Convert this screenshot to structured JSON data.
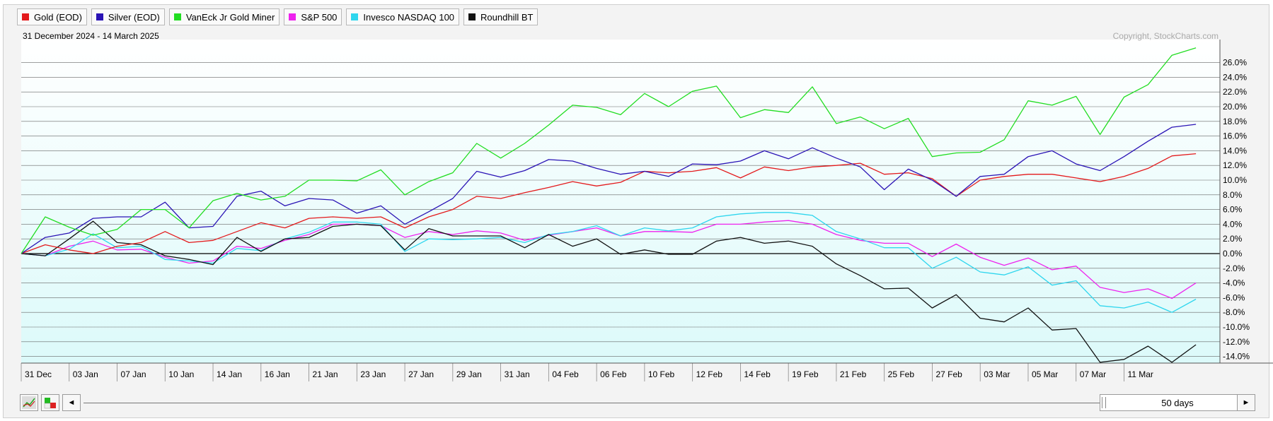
{
  "legend": [
    {
      "label": "Gold (EOD)",
      "color": "#e31a1c"
    },
    {
      "label": "Silver (EOD)",
      "color": "#2a13b5"
    },
    {
      "label": "VanEck Jr Gold Miner",
      "color": "#22dd22"
    },
    {
      "label": "S&P 500",
      "color": "#ee22ee"
    },
    {
      "label": "Invesco NASDAQ 100",
      "color": "#2fd6ee"
    },
    {
      "label": "Roundhill BT",
      "color": "#111111"
    }
  ],
  "date_range": "31 December 2024 - 14 March 2025",
  "copyright": "Copyright, StockCharts.com",
  "controls": {
    "left_arrow": "◄",
    "right_arrow": "►",
    "range": "50 days"
  },
  "chart_data": {
    "type": "line",
    "x": [
      "31 Dec",
      "02 Jan",
      "03 Jan",
      "06 Jan",
      "07 Jan",
      "08 Jan",
      "10 Jan",
      "13 Jan",
      "14 Jan",
      "15 Jan",
      "16 Jan",
      "17 Jan",
      "21 Jan",
      "22 Jan",
      "23 Jan",
      "24 Jan",
      "27 Jan",
      "28 Jan",
      "29 Jan",
      "30 Jan",
      "31 Jan",
      "03 Feb",
      "04 Feb",
      "05 Feb",
      "06 Feb",
      "07 Feb",
      "10 Feb",
      "11 Feb",
      "12 Feb",
      "13 Feb",
      "14 Feb",
      "18 Feb",
      "19 Feb",
      "20 Feb",
      "21 Feb",
      "24 Feb",
      "25 Feb",
      "26 Feb",
      "27 Feb",
      "28 Feb",
      "03 Mar",
      "04 Mar",
      "05 Mar",
      "06 Mar",
      "07 Mar",
      "10 Mar",
      "11 Mar",
      "12 Mar",
      "13 Mar",
      "14 Mar"
    ],
    "xtick_labels": [
      "31 Dec",
      "03 Jan",
      "07 Jan",
      "10 Jan",
      "14 Jan",
      "16 Jan",
      "21 Jan",
      "23 Jan",
      "27 Jan",
      "29 Jan",
      "31 Jan",
      "04 Feb",
      "06 Feb",
      "10 Feb",
      "12 Feb",
      "14 Feb",
      "19 Feb",
      "21 Feb",
      "25 Feb",
      "27 Feb",
      "03 Mar",
      "05 Mar",
      "07 Mar",
      "11 Mar"
    ],
    "y_unit": "%",
    "ylim": [
      -15,
      28
    ],
    "yticks": [
      -14,
      -12,
      -10,
      -8,
      -6,
      -4,
      -2,
      0,
      2,
      4,
      6,
      8,
      10,
      12,
      14,
      16,
      18,
      20,
      22,
      24,
      26
    ],
    "ytick_labels": [
      "-14.0%",
      "-12.0%",
      "-10.0%",
      "-8.0%",
      "-6.0%",
      "-4.0%",
      "-2.0%",
      "0.0%",
      "2.0%",
      "4.0%",
      "6.0%",
      "8.0%",
      "10.0%",
      "12.0%",
      "14.0%",
      "16.0%",
      "18.0%",
      "20.0%",
      "22.0%",
      "24.0%",
      "26.0%"
    ],
    "grid": true,
    "series": [
      {
        "name": "Gold (EOD)",
        "color": "#e31a1c",
        "values": [
          0,
          1.2,
          0.5,
          0,
          1,
          1.5,
          3,
          1.5,
          1.8,
          3,
          4.2,
          3.5,
          4.8,
          5,
          4.8,
          5,
          3.5,
          5,
          6,
          7.8,
          7.5,
          8.3,
          9,
          9.8,
          9.2,
          9.7,
          11.2,
          11,
          11.2,
          11.7,
          10.3,
          11.8,
          11.3,
          11.8,
          12,
          12.3,
          10.8,
          11,
          10.2,
          7.8,
          10,
          10.5,
          10.8,
          10.8,
          10.3,
          9.8,
          10.5,
          11.6,
          13.3,
          13.6
        ]
      },
      {
        "name": "Silver (EOD)",
        "color": "#2a13b5",
        "values": [
          0,
          2.2,
          2.8,
          4.8,
          5,
          5,
          7,
          3.5,
          3.7,
          7.8,
          8.5,
          6.5,
          7.5,
          7.3,
          5.5,
          6.5,
          4,
          5.7,
          7.5,
          11.2,
          10.4,
          11.3,
          12.8,
          12.6,
          11.6,
          10.8,
          11.2,
          10.5,
          12.2,
          12.1,
          12.6,
          14,
          12.9,
          14.4,
          13,
          11.8,
          8.7,
          11.5,
          10,
          7.8,
          10.5,
          10.8,
          13.2,
          14,
          12.2,
          11.3,
          13.2,
          15.3,
          17.2,
          17.6
        ]
      },
      {
        "name": "VanEck Jr Gold Miner",
        "color": "#22dd22",
        "values": [
          0,
          5,
          3.6,
          2.5,
          3.3,
          6,
          6,
          3.5,
          7.2,
          8.2,
          7.3,
          7.8,
          10,
          10,
          9.9,
          11.4,
          8,
          9.8,
          11,
          15,
          13,
          15,
          17.5,
          20.2,
          19.9,
          18.9,
          21.8,
          20,
          22.1,
          22.8,
          18.5,
          19.6,
          19.2,
          22.7,
          17.7,
          18.6,
          17,
          18.4,
          13.2,
          13.7,
          13.8,
          15.5,
          20.8,
          20.2,
          21.4,
          16.2,
          21.3,
          23,
          27,
          28
        ]
      },
      {
        "name": "S&P 500",
        "color": "#ee22ee",
        "values": [
          0,
          -0.3,
          1,
          1.7,
          0.5,
          0.6,
          -0.5,
          -1.3,
          -1,
          1,
          0.7,
          1.8,
          2.6,
          4,
          4,
          3.8,
          2.2,
          3,
          2.6,
          3.1,
          2.8,
          1.8,
          2.5,
          3,
          3.5,
          2.4,
          3,
          3,
          2.9,
          4,
          4,
          4.3,
          4.5,
          4,
          2.6,
          1.8,
          1.4,
          1.4,
          -0.4,
          1.3,
          -0.5,
          -1.6,
          -0.6,
          -2.2,
          -1.7,
          -4.6,
          -5.3,
          -4.8,
          -6.1,
          -4
        ]
      },
      {
        "name": "Invesco NASDAQ 100",
        "color": "#2fd6ee",
        "values": [
          0,
          -0.3,
          0.6,
          2.7,
          0.8,
          1,
          -0.8,
          -1,
          -1.3,
          0.7,
          0.4,
          2,
          2.9,
          4.3,
          4.3,
          4,
          0.3,
          2,
          1.9,
          2,
          2.2,
          1.5,
          2.6,
          3,
          3.8,
          2.4,
          3.5,
          3.1,
          3.5,
          5,
          5.4,
          5.6,
          5.6,
          5.2,
          3,
          2,
          0.8,
          0.8,
          -2,
          -0.5,
          -2.5,
          -2.9,
          -1.8,
          -4.3,
          -3.7,
          -7.1,
          -7.4,
          -6.6,
          -8,
          -6.2
        ]
      },
      {
        "name": "Roundhill BT",
        "color": "#111111",
        "values": [
          0,
          -0.3,
          2,
          4.4,
          1.5,
          1.2,
          -0.3,
          -0.8,
          -1.5,
          2.2,
          0.3,
          2,
          2.2,
          3.7,
          4,
          3.8,
          0.5,
          3.4,
          2.4,
          2.4,
          2.4,
          0.8,
          2.6,
          1,
          2,
          -0.1,
          0.5,
          -0.1,
          -0.1,
          1.7,
          2.2,
          1.4,
          1.7,
          1,
          -1.4,
          -3,
          -4.8,
          -4.7,
          -7.4,
          -5.6,
          -8.8,
          -9.3,
          -7.4,
          -10.4,
          -10.2,
          -14.8,
          -14.4,
          -12.6,
          -14.8,
          -12.4
        ]
      }
    ]
  }
}
